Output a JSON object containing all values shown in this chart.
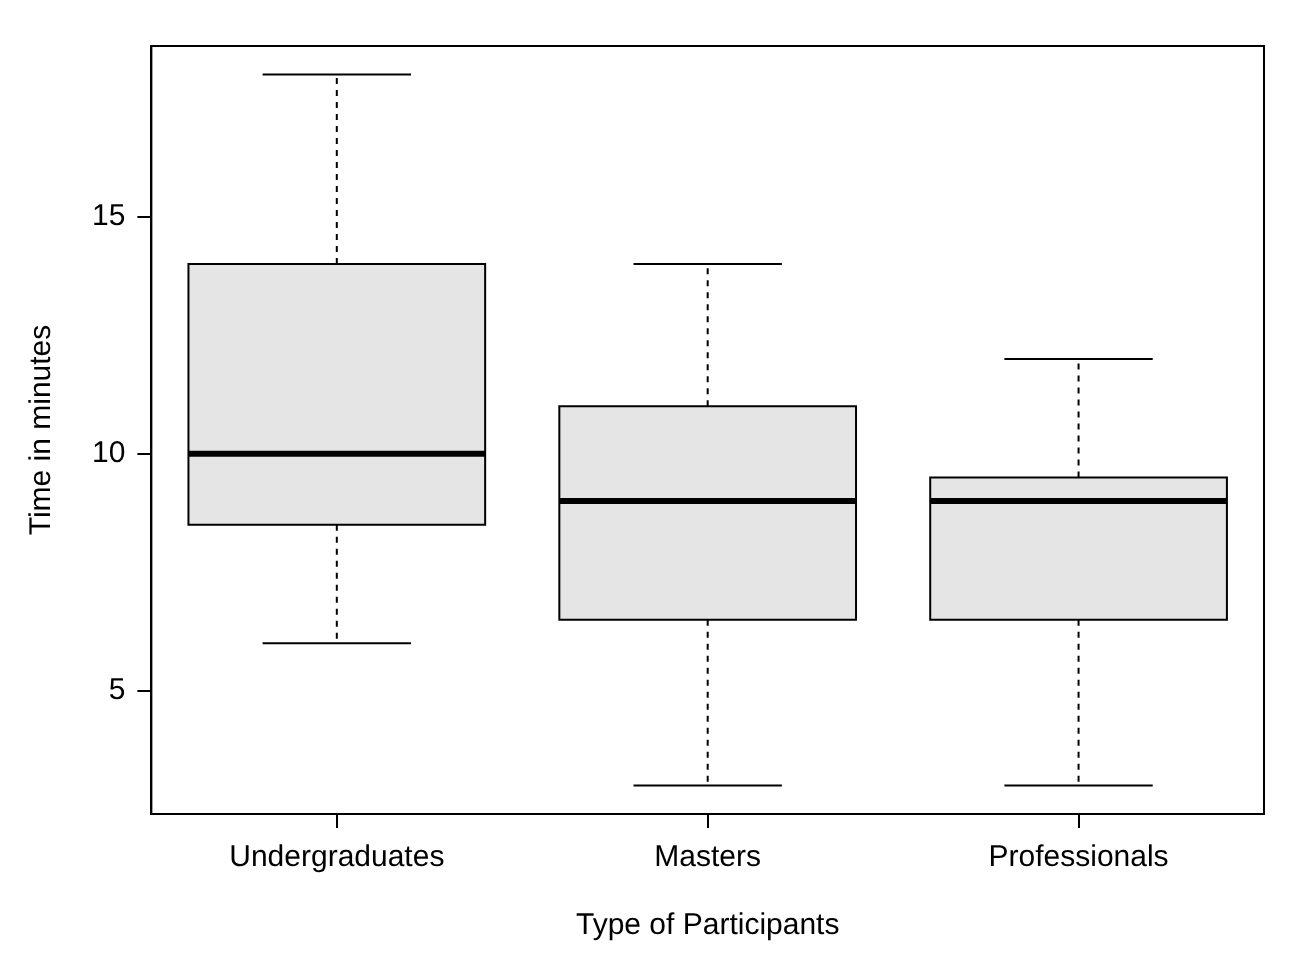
{
  "chart_data": {
    "type": "box",
    "xlabel": "Type of Participants",
    "ylabel": "Time in minutes",
    "categories": [
      "Undergraduates",
      "Masters",
      "Professionals"
    ],
    "boxes": [
      {
        "low": 6,
        "q1": 8.5,
        "median": 10,
        "q3": 14,
        "high": 18
      },
      {
        "low": 3,
        "q1": 6.5,
        "median": 9,
        "q3": 11,
        "high": 14
      },
      {
        "low": 3,
        "q1": 6.5,
        "median": 9,
        "q3": 9.5,
        "high": 12
      }
    ],
    "color": "#e5e5e5",
    "ylim": [
      2.4,
      18.6
    ],
    "yticks": [
      5,
      10,
      15
    ],
    "grid": false,
    "legend": false
  }
}
